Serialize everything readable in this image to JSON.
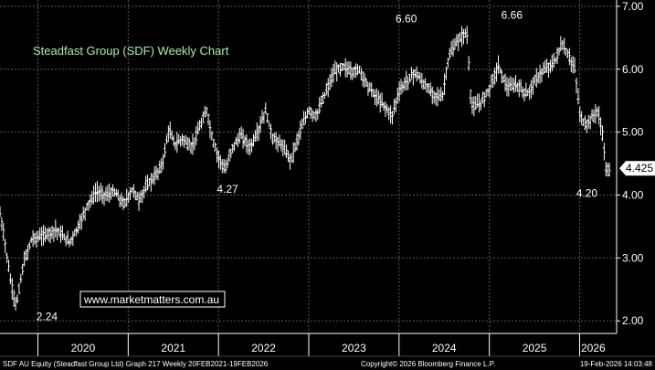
{
  "chart_data": {
    "type": "ohlc",
    "title": "Steadfast Group (SDF) Weekly Chart",
    "watermark": "www.marketmatters.com.au",
    "y_ticks": [
      "2.00",
      "3.00",
      "4.00",
      "5.00",
      "6.00",
      "7.00"
    ],
    "ylim": [
      1.8,
      7.1
    ],
    "x_labels": [
      "2020",
      "2021",
      "2022",
      "2023",
      "2024",
      "2025",
      "2026"
    ],
    "x_label_positions": [
      2020.5,
      2021.5,
      2022.5,
      2023.5,
      2024.5,
      2025.5,
      2026.15
    ],
    "year_boundaries": [
      2020,
      2021,
      2022,
      2023,
      2024,
      2025,
      2026
    ],
    "xlim": [
      2019.58,
      2026.41
    ],
    "grid": true,
    "last_price": {
      "label": "4.425",
      "value": 4.425
    },
    "annotations": [
      {
        "text": "2.24",
        "x": 2020.1,
        "y": 2.24
      },
      {
        "text": "4.27",
        "x": 2022.1,
        "y": 4.27
      },
      {
        "text": "6.60",
        "x": 2024.08,
        "y": 6.6
      },
      {
        "text": "6.66",
        "x": 2025.25,
        "y": 6.66
      },
      {
        "text": "4.20",
        "x": 2026.08,
        "y": 4.2
      }
    ],
    "price_path": [
      [
        2019.58,
        3.7
      ],
      [
        2019.63,
        3.3
      ],
      [
        2019.7,
        2.6
      ],
      [
        2019.76,
        2.24
      ],
      [
        2019.84,
        2.9
      ],
      [
        2019.93,
        3.3
      ],
      [
        2020.05,
        3.35
      ],
      [
        2020.2,
        3.45
      ],
      [
        2020.35,
        3.25
      ],
      [
        2020.45,
        3.5
      ],
      [
        2020.55,
        3.85
      ],
      [
        2020.65,
        4.05
      ],
      [
        2020.75,
        4.0
      ],
      [
        2020.85,
        4.05
      ],
      [
        2020.95,
        3.85
      ],
      [
        2021.05,
        4.1
      ],
      [
        2021.12,
        3.9
      ],
      [
        2021.2,
        4.15
      ],
      [
        2021.3,
        4.3
      ],
      [
        2021.38,
        4.5
      ],
      [
        2021.45,
        5.05
      ],
      [
        2021.52,
        4.8
      ],
      [
        2021.6,
        4.9
      ],
      [
        2021.7,
        4.75
      ],
      [
        2021.8,
        5.1
      ],
      [
        2021.87,
        5.35
      ],
      [
        2021.93,
        4.9
      ],
      [
        2022.0,
        4.6
      ],
      [
        2022.08,
        4.4
      ],
      [
        2022.15,
        4.75
      ],
      [
        2022.25,
        4.95
      ],
      [
        2022.35,
        4.75
      ],
      [
        2022.45,
        5.05
      ],
      [
        2022.52,
        5.35
      ],
      [
        2022.6,
        4.9
      ],
      [
        2022.7,
        4.8
      ],
      [
        2022.8,
        4.55
      ],
      [
        2022.9,
        5.0
      ],
      [
        2023.0,
        5.35
      ],
      [
        2023.08,
        5.25
      ],
      [
        2023.18,
        5.6
      ],
      [
        2023.28,
        5.95
      ],
      [
        2023.38,
        6.05
      ],
      [
        2023.48,
        5.95
      ],
      [
        2023.56,
        6.0
      ],
      [
        2023.65,
        5.75
      ],
      [
        2023.75,
        5.55
      ],
      [
        2023.85,
        5.4
      ],
      [
        2023.92,
        5.25
      ],
      [
        2024.0,
        5.65
      ],
      [
        2024.08,
        5.8
      ],
      [
        2024.18,
        5.95
      ],
      [
        2024.28,
        5.75
      ],
      [
        2024.38,
        5.6
      ],
      [
        2024.48,
        5.55
      ],
      [
        2024.55,
        6.2
      ],
      [
        2024.65,
        6.45
      ],
      [
        2024.75,
        6.6
      ],
      [
        2024.8,
        5.4
      ],
      [
        2024.9,
        5.45
      ],
      [
        2025.0,
        5.7
      ],
      [
        2025.1,
        6.05
      ],
      [
        2025.2,
        5.7
      ],
      [
        2025.3,
        5.75
      ],
      [
        2025.42,
        5.6
      ],
      [
        2025.52,
        5.85
      ],
      [
        2025.62,
        6.0
      ],
      [
        2025.72,
        6.1
      ],
      [
        2025.8,
        6.4
      ],
      [
        2025.88,
        6.2
      ],
      [
        2025.95,
        6.0
      ],
      [
        2026.0,
        5.3
      ],
      [
        2026.06,
        5.1
      ],
      [
        2026.12,
        5.2
      ],
      [
        2026.2,
        5.35
      ],
      [
        2026.26,
        4.9
      ],
      [
        2026.3,
        4.3
      ],
      [
        2026.33,
        4.425
      ]
    ],
    "footer_left": "SDF AU Equity (Steadfast Group Ltd) Graph 217 Weekly 20FEB2021-19FEB2026",
    "footer_center": "Copyright© 2026 Bloomberg Finance L.P.",
    "footer_right": "19-Feb-2026 14:03:48",
    "colors": {
      "background": "#000000",
      "bars": "#ffffff",
      "grid": "#5a5a5a",
      "title": "#a6f0a6",
      "last_price_box": "#ffffff"
    }
  }
}
